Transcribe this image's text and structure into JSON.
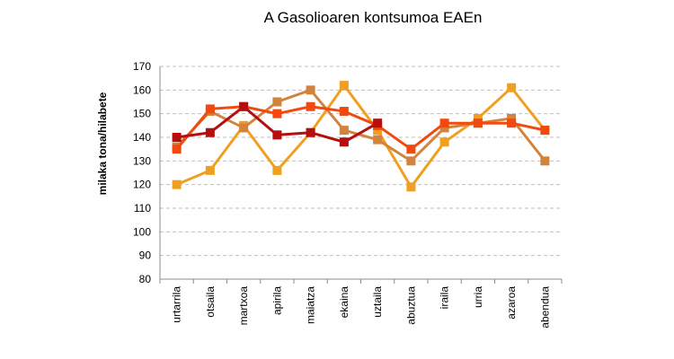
{
  "chart_data": {
    "type": "line",
    "title": "A Gasolioaren kontsumoa EAEn",
    "xlabel": "",
    "ylabel": "milaka tona/hilabete",
    "ylim": [
      80,
      170
    ],
    "yticks": [
      80,
      90,
      100,
      110,
      120,
      130,
      140,
      150,
      160,
      170
    ],
    "grid": true,
    "legend": "none",
    "categories": [
      "urtarrila",
      "otsaila",
      "martxoa",
      "apirila",
      "maiatza",
      "ekaina",
      "uztaila",
      "abuztua",
      "iraila",
      "urria",
      "azaroa",
      "abendua"
    ],
    "series": [
      {
        "color": "#F0A020",
        "values": [
          120,
          126,
          145,
          126,
          142,
          162,
          143,
          119,
          138,
          148,
          161,
          143
        ]
      },
      {
        "color": "#D2843F",
        "values": [
          136,
          151,
          144,
          155,
          160,
          143,
          139,
          130,
          144,
          146,
          148,
          130
        ]
      },
      {
        "color": "#F04A10",
        "values": [
          135,
          152,
          153,
          150,
          153,
          151,
          145,
          135,
          146,
          146,
          146,
          143
        ]
      },
      {
        "color": "#B40E0E",
        "values": [
          140,
          142,
          153,
          141,
          142,
          138,
          146,
          null,
          null,
          null,
          null,
          null
        ]
      }
    ]
  }
}
